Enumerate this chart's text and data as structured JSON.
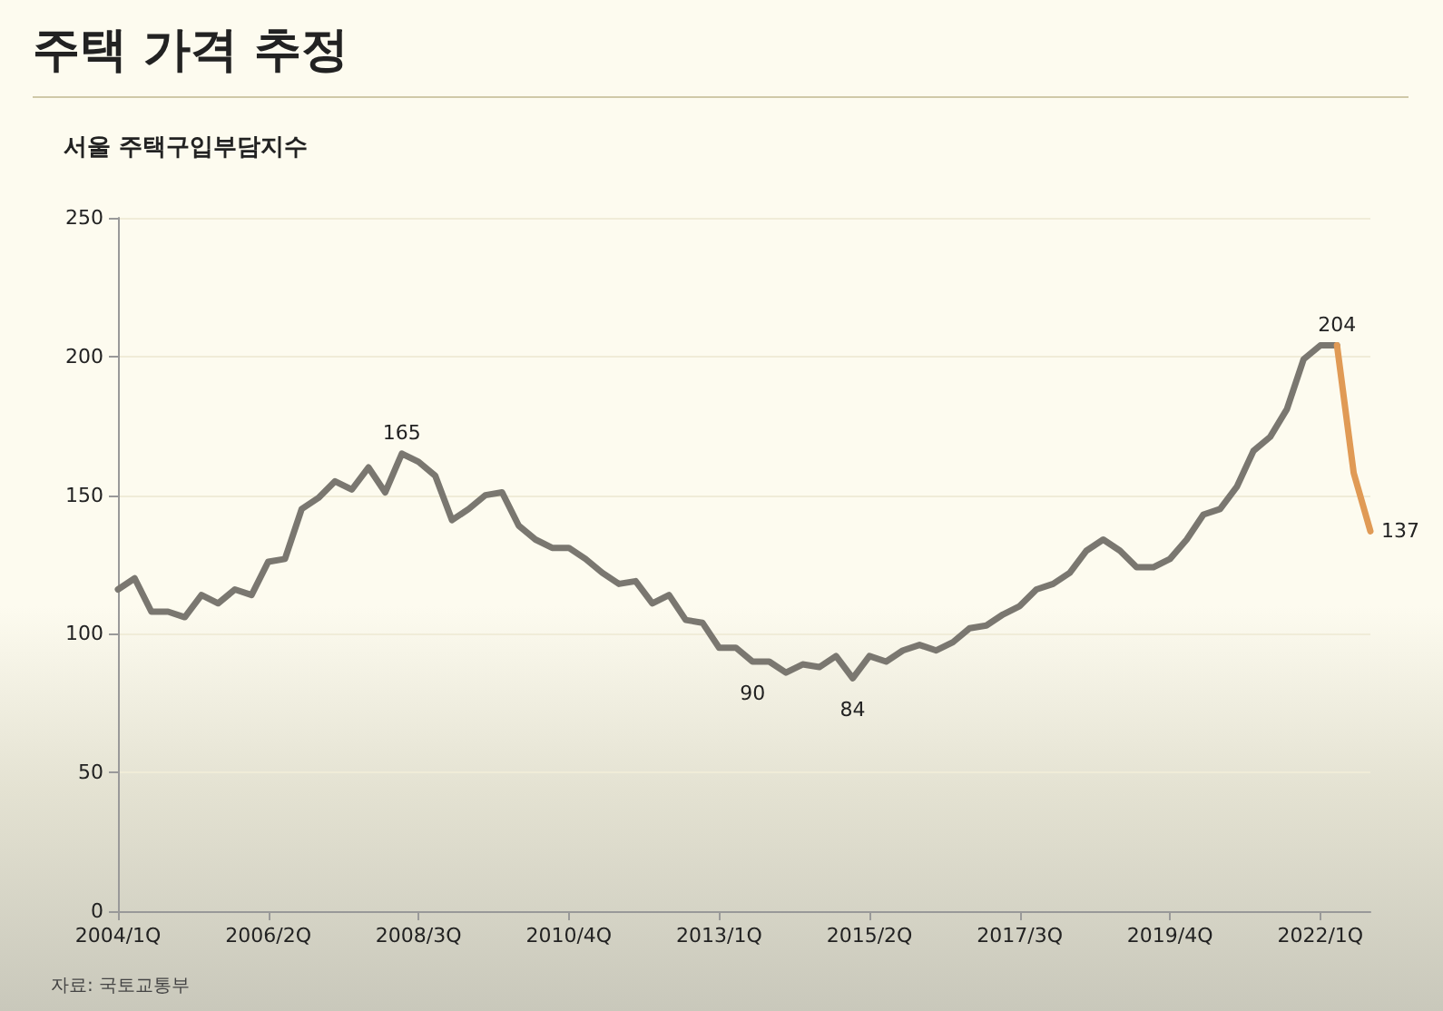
{
  "chart_data": {
    "type": "line",
    "title": "주택 가격 추정",
    "ylabel": "서울 주택구입부담지수",
    "categories": [
      "2004/1Q",
      null,
      null,
      null,
      null,
      null,
      null,
      null,
      null,
      "2006/2Q",
      null,
      null,
      null,
      null,
      null,
      null,
      null,
      null,
      "2008/3Q",
      null,
      null,
      null,
      null,
      null,
      null,
      null,
      null,
      "2010/4Q",
      null,
      null,
      null,
      null,
      null,
      null,
      null,
      null,
      "2013/1Q",
      null,
      null,
      null,
      null,
      null,
      null,
      null,
      null,
      "2015/2Q",
      null,
      null,
      null,
      null,
      null,
      null,
      null,
      null,
      "2017/3Q",
      null,
      null,
      null,
      null,
      null,
      null,
      null,
      null,
      "2019/4Q",
      null,
      null,
      null,
      null,
      null,
      null,
      null,
      null,
      "2022/1Q",
      null,
      null,
      null
    ],
    "series": [
      {
        "color": "#7a7770",
        "values": [
          116,
          120,
          108,
          108,
          106,
          114,
          111,
          116,
          114,
          126,
          127,
          145,
          149,
          155,
          152,
          160,
          151,
          165,
          162,
          157,
          141,
          145,
          150,
          151,
          139,
          134,
          131,
          131,
          127,
          122,
          118,
          119,
          111,
          114,
          105,
          104,
          95,
          95,
          90,
          90,
          86,
          89,
          88,
          92,
          84,
          92,
          90,
          94,
          96,
          94,
          97,
          102,
          103,
          107,
          110,
          116,
          118,
          122,
          130,
          134,
          130,
          124,
          124,
          127,
          134,
          143,
          145,
          153,
          166,
          171,
          181,
          199,
          204,
          204,
          null,
          null
        ],
        "value_labels": [
          null,
          null,
          null,
          null,
          null,
          null,
          null,
          null,
          null,
          null,
          null,
          null,
          null,
          null,
          null,
          null,
          null,
          "165",
          null,
          null,
          null,
          null,
          null,
          null,
          null,
          null,
          null,
          null,
          null,
          null,
          null,
          null,
          null,
          null,
          null,
          null,
          null,
          null,
          "90",
          null,
          null,
          null,
          null,
          null,
          "84",
          null,
          null,
          null,
          null,
          null,
          null,
          null,
          null,
          null,
          null,
          null,
          null,
          null,
          null,
          null,
          null,
          null,
          null,
          null,
          null,
          null,
          null,
          null,
          null,
          null,
          null,
          null,
          null,
          null,
          null,
          null
        ]
      },
      {
        "color": "#e09a55",
        "values": [
          null,
          null,
          null,
          null,
          null,
          null,
          null,
          null,
          null,
          null,
          null,
          null,
          null,
          null,
          null,
          null,
          null,
          null,
          null,
          null,
          null,
          null,
          null,
          null,
          null,
          null,
          null,
          null,
          null,
          null,
          null,
          null,
          null,
          null,
          null,
          null,
          null,
          null,
          null,
          null,
          null,
          null,
          null,
          null,
          null,
          null,
          null,
          null,
          null,
          null,
          null,
          null,
          null,
          null,
          null,
          null,
          null,
          null,
          null,
          null,
          null,
          null,
          null,
          null,
          null,
          null,
          null,
          null,
          null,
          null,
          null,
          null,
          null,
          204,
          158,
          137
        ],
        "value_labels": [
          null,
          null,
          null,
          null,
          null,
          null,
          null,
          null,
          null,
          null,
          null,
          null,
          null,
          null,
          null,
          null,
          null,
          null,
          null,
          null,
          null,
          null,
          null,
          null,
          null,
          null,
          null,
          null,
          null,
          null,
          null,
          null,
          null,
          null,
          null,
          null,
          null,
          null,
          null,
          null,
          null,
          null,
          null,
          null,
          null,
          null,
          null,
          null,
          null,
          null,
          null,
          null,
          null,
          null,
          null,
          null,
          null,
          null,
          null,
          null,
          null,
          null,
          null,
          null,
          null,
          null,
          null,
          null,
          null,
          null,
          null,
          null,
          null,
          "204",
          null,
          "137"
        ]
      }
    ],
    "ylim": [
      0,
      250
    ],
    "yticks": [
      0,
      50,
      100,
      150,
      200,
      250
    ],
    "grid": "y",
    "marker": "none",
    "line_style": "solid",
    "annotations": [
      "자료: 국토교통부"
    ]
  }
}
